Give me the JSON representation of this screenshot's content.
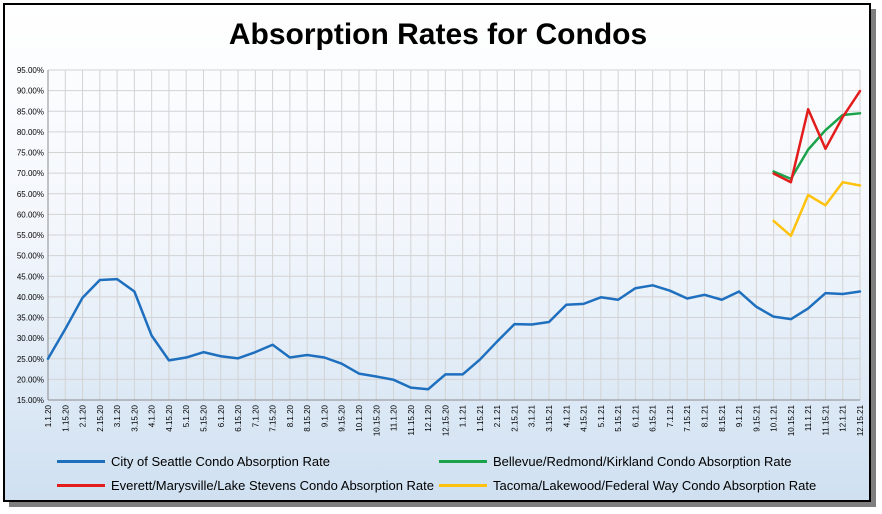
{
  "chart_data": {
    "type": "line",
    "title": "Absorption Rates for Condos",
    "xlabel": "",
    "ylabel": "",
    "ylim": [
      15,
      95
    ],
    "y_unit": "%",
    "yticks": [
      "15.00%",
      "20.00%",
      "25.00%",
      "30.00%",
      "35.00%",
      "40.00%",
      "45.00%",
      "50.00%",
      "55.00%",
      "60.00%",
      "65.00%",
      "70.00%",
      "75.00%",
      "80.00%",
      "85.00%",
      "90.00%",
      "95.00%"
    ],
    "grid": true,
    "legend_position": "bottom",
    "categories": [
      "1.1.20",
      "1.15.20",
      "2.1.20",
      "2.15.20",
      "3.1.20",
      "3.15.20",
      "4.1.20",
      "4.15.20",
      "5.1.20",
      "5.15.20",
      "6.1.20",
      "6.15.20",
      "7.1.20",
      "7.15.20",
      "8.1.20",
      "8.15.20",
      "9.1.20",
      "9.15.20",
      "10.1.20",
      "10.15.20",
      "11.1.20",
      "11.15.20",
      "12.1.20",
      "12.15.20",
      "1.1.21",
      "1.15.21",
      "2.1.21",
      "2.15.21",
      "3.1.21",
      "3.15.21",
      "4.1.21",
      "4.15.21",
      "5.1.21",
      "5.15.21",
      "6.1.21",
      "6.15.21",
      "7.1.21",
      "7.15.21",
      "8.1.21",
      "8.15.21",
      "9.1.21",
      "9.15.21",
      "10.1.21",
      "10.15.21",
      "11.1.21",
      "11.15.21",
      "12.1.21",
      "12.15.21"
    ],
    "series": [
      {
        "name": "City of Seattle Condo Absorption Rate",
        "color": "#1f6fbf",
        "values": [
          25.0,
          32.2,
          39.8,
          44.1,
          44.3,
          41.3,
          30.6,
          24.6,
          25.3,
          26.6,
          25.6,
          25.1,
          26.6,
          28.4,
          25.3,
          25.9,
          25.3,
          23.8,
          21.4,
          20.7,
          19.9,
          18.0,
          17.6,
          21.2,
          21.2,
          24.8,
          29.2,
          33.4,
          33.3,
          33.9,
          38.1,
          38.3,
          39.9,
          39.3,
          42.1,
          42.8,
          41.5,
          39.6,
          40.5,
          39.3,
          41.3,
          37.6,
          35.2,
          34.6,
          37.2,
          40.9,
          40.7,
          41.3
        ]
      },
      {
        "name": "Bellevue/Redmond/Kirkland Condo Absorption Rate",
        "color": "#1aa34a",
        "values": [
          null,
          null,
          null,
          null,
          null,
          null,
          null,
          null,
          null,
          null,
          null,
          null,
          null,
          null,
          null,
          null,
          null,
          null,
          null,
          null,
          null,
          null,
          null,
          null,
          null,
          null,
          null,
          null,
          null,
          null,
          null,
          null,
          null,
          null,
          null,
          null,
          null,
          null,
          null,
          null,
          null,
          null,
          70.4,
          68.6,
          75.7,
          80.4,
          84.1,
          84.5
        ]
      },
      {
        "name": "Everett/Marysville/Lake Stevens Condo Absorption Rate",
        "color": "#e31c1c",
        "values": [
          null,
          null,
          null,
          null,
          null,
          null,
          null,
          null,
          null,
          null,
          null,
          null,
          null,
          null,
          null,
          null,
          null,
          null,
          null,
          null,
          null,
          null,
          null,
          null,
          null,
          null,
          null,
          null,
          null,
          null,
          null,
          null,
          null,
          null,
          null,
          null,
          null,
          null,
          null,
          null,
          null,
          null,
          69.9,
          67.8,
          85.5,
          75.9,
          83.6,
          89.9
        ]
      },
      {
        "name": "Tacoma/Lakewood/Federal Way Condo Absorption Rate",
        "color": "#ffc20e",
        "values": [
          null,
          null,
          null,
          null,
          null,
          null,
          null,
          null,
          null,
          null,
          null,
          null,
          null,
          null,
          null,
          null,
          null,
          null,
          null,
          null,
          null,
          null,
          null,
          null,
          null,
          null,
          null,
          null,
          null,
          null,
          null,
          null,
          null,
          null,
          null,
          null,
          null,
          null,
          null,
          null,
          null,
          null,
          58.4,
          54.8,
          64.7,
          62.2,
          67.8,
          67.0
        ]
      }
    ]
  }
}
